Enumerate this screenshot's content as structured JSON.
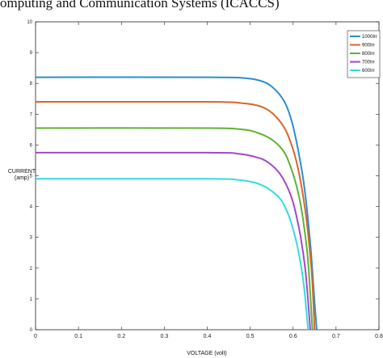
{
  "page": {
    "header_text": "omputing and Communication Systems (ICACCS)"
  },
  "chart_data": {
    "type": "line",
    "title": "",
    "xlabel": "VOLTAGE (volt)",
    "ylabel_lines": [
      "CURRENT",
      "(amp)"
    ],
    "xlim": [
      0,
      0.8
    ],
    "ylim": [
      0,
      10
    ],
    "x_ticks": [
      0,
      0.1,
      0.2,
      0.3,
      0.4,
      0.5,
      0.6,
      0.7,
      0.8
    ],
    "x_tick_labels": [
      "0",
      "0.1",
      "0.2",
      "0.3",
      "0.4",
      "0.5",
      "0.6",
      "0.7",
      "0.8"
    ],
    "y_ticks": [
      0,
      1,
      2,
      3,
      4,
      5,
      6,
      7,
      8,
      9,
      10
    ],
    "y_tick_labels": [
      "0",
      "1",
      "2",
      "3",
      "4",
      "5",
      "6",
      "7",
      "8",
      "9",
      "10"
    ],
    "grid": false,
    "legend_position": "top-right",
    "series": [
      {
        "name": "1000Irr",
        "color": "#2a8fd0",
        "x": [
          0,
          0.4,
          0.48,
          0.52,
          0.55,
          0.58,
          0.6,
          0.62,
          0.63,
          0.64,
          0.645,
          0.65,
          0.655
        ],
        "y": [
          8.2,
          8.2,
          8.18,
          8.1,
          7.9,
          7.4,
          6.6,
          5.2,
          4.2,
          2.8,
          1.9,
          0.9,
          0
        ]
      },
      {
        "name": "900Irr",
        "color": "#d9652b",
        "x": [
          0,
          0.4,
          0.48,
          0.52,
          0.55,
          0.58,
          0.6,
          0.615,
          0.63,
          0.64,
          0.645,
          0.65
        ],
        "y": [
          7.4,
          7.4,
          7.36,
          7.27,
          7.05,
          6.55,
          5.85,
          5.0,
          3.7,
          2.4,
          1.5,
          0
        ]
      },
      {
        "name": "800Irr",
        "color": "#5db332",
        "x": [
          0,
          0.4,
          0.47,
          0.51,
          0.55,
          0.58,
          0.6,
          0.615,
          0.625,
          0.635,
          0.645
        ],
        "y": [
          6.55,
          6.55,
          6.52,
          6.43,
          6.18,
          5.75,
          5.05,
          4.25,
          3.4,
          2.2,
          0
        ]
      },
      {
        "name": "700Irr",
        "color": "#a347c9",
        "x": [
          0,
          0.4,
          0.47,
          0.51,
          0.54,
          0.57,
          0.595,
          0.61,
          0.62,
          0.63,
          0.64
        ],
        "y": [
          5.75,
          5.75,
          5.72,
          5.62,
          5.45,
          5.05,
          4.35,
          3.55,
          2.8,
          1.75,
          0
        ]
      },
      {
        "name": "600Irr",
        "color": "#33dde0",
        "x": [
          0,
          0.4,
          0.47,
          0.51,
          0.54,
          0.57,
          0.59,
          0.605,
          0.615,
          0.625,
          0.635
        ],
        "y": [
          4.9,
          4.9,
          4.87,
          4.78,
          4.6,
          4.25,
          3.7,
          3.0,
          2.35,
          1.45,
          0
        ]
      }
    ]
  }
}
